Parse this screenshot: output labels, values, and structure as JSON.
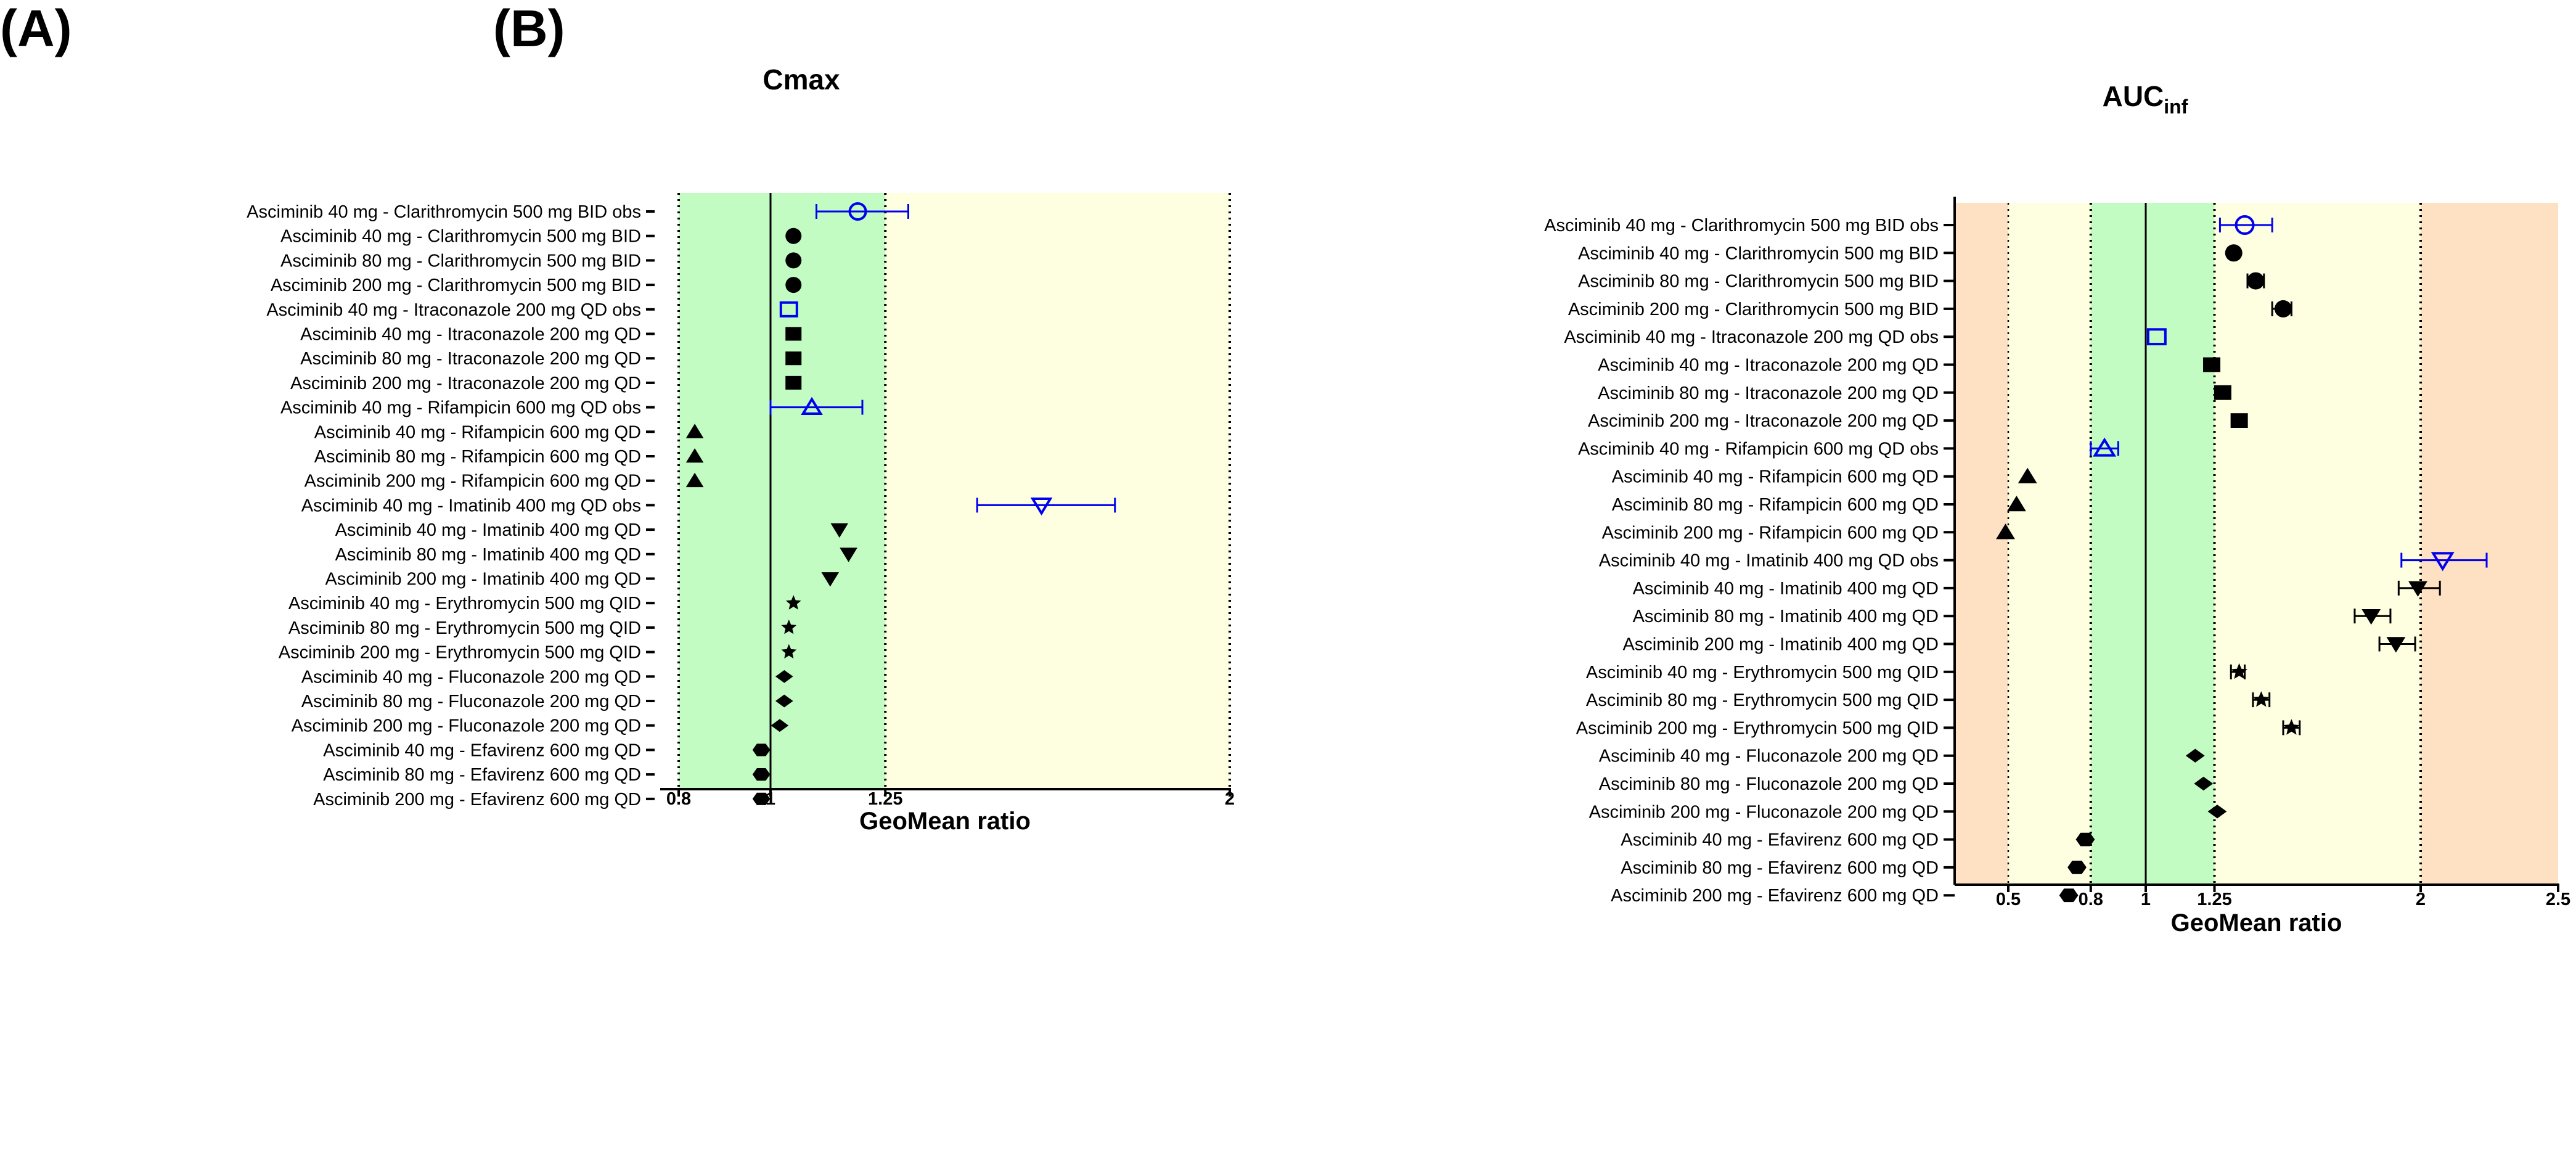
{
  "colors": {
    "green": "#c2fcc2",
    "yellow": "#fefee0",
    "orange": "#fee0c2",
    "obs": "#0000ee",
    "model": "#000000"
  },
  "chart_data": [
    {
      "type": "scatter",
      "panel_label": "(A)",
      "title": "Cmax",
      "title_sub": "",
      "xlabel": "GeoMean ratio",
      "xlim": [
        0.8,
        2
      ],
      "xticks": [
        0.8,
        1,
        1.25,
        2
      ],
      "xtick_labels": [
        "0.8",
        "1",
        "1.25",
        "2"
      ],
      "ref_solid": [
        1
      ],
      "ref_dotted": [
        0.8,
        1.25,
        2
      ],
      "bands": [
        {
          "from": 0.8,
          "to": 1.25,
          "color": "green"
        },
        {
          "from": 1.25,
          "to": 2,
          "color": "yellow"
        }
      ],
      "categories": [
        "Asciminib 40 mg - Clarithromycin 500 mg BID obs",
        "Asciminib 40 mg - Clarithromycin 500 mg BID",
        "Asciminib 80 mg - Clarithromycin 500 mg BID",
        "Asciminib 200 mg - Clarithromycin 500 mg BID",
        "Asciminib 40 mg - Itraconazole 200 mg QD obs",
        "Asciminib 40 mg - Itraconazole 200 mg QD",
        "Asciminib 80 mg - Itraconazole 200 mg QD",
        "Asciminib 200 mg - Itraconazole 200 mg QD",
        "Asciminib 40 mg - Rifampicin 600 mg QD obs",
        "Asciminib 40 mg - Rifampicin 600 mg QD",
        "Asciminib 80 mg - Rifampicin 600 mg QD",
        "Asciminib 200 mg - Rifampicin 600 mg QD",
        "Asciminib 40 mg - Imatinib 400 mg QD obs",
        "Asciminib 40 mg - Imatinib 400 mg QD",
        "Asciminib 80 mg - Imatinib 400 mg QD",
        "Asciminib 200 mg - Imatinib 400 mg QD",
        "Asciminib 40 mg - Erythromycin 500 mg QID",
        "Asciminib 80 mg - Erythromycin 500 mg QID",
        "Asciminib 200 mg - Erythromycin 500 mg QID",
        "Asciminib 40 mg - Fluconazole 200 mg QD",
        "Asciminib 80 mg - Fluconazole 200 mg QD",
        "Asciminib 200 mg - Fluconazole 200 mg QD",
        "Asciminib 40 mg - Efavirenz 600 mg QD",
        "Asciminib 80 mg - Efavirenz 600 mg QD",
        "Asciminib 200 mg - Efavirenz 600 mg QD"
      ],
      "points": [
        {
          "v": 1.19,
          "lo": 1.1,
          "hi": 1.3,
          "marker": "open-circle",
          "obs": true
        },
        {
          "v": 1.05,
          "marker": "circle"
        },
        {
          "v": 1.05,
          "marker": "circle"
        },
        {
          "v": 1.05,
          "marker": "circle"
        },
        {
          "v": 1.04,
          "marker": "open-square",
          "obs": true
        },
        {
          "v": 1.05,
          "marker": "square"
        },
        {
          "v": 1.05,
          "marker": "square"
        },
        {
          "v": 1.05,
          "marker": "square"
        },
        {
          "v": 1.09,
          "lo": 1.0,
          "hi": 1.2,
          "marker": "open-triangle",
          "obs": true
        },
        {
          "v": 0.835,
          "marker": "triangle"
        },
        {
          "v": 0.835,
          "marker": "triangle"
        },
        {
          "v": 0.835,
          "marker": "triangle"
        },
        {
          "v": 1.59,
          "lo": 1.45,
          "hi": 1.75,
          "marker": "open-down-triangle",
          "obs": true
        },
        {
          "v": 1.15,
          "marker": "down-triangle"
        },
        {
          "v": 1.17,
          "marker": "down-triangle"
        },
        {
          "v": 1.13,
          "marker": "down-triangle"
        },
        {
          "v": 1.05,
          "marker": "star"
        },
        {
          "v": 1.04,
          "marker": "star"
        },
        {
          "v": 1.04,
          "marker": "star"
        },
        {
          "v": 1.03,
          "marker": "diamond"
        },
        {
          "v": 1.03,
          "marker": "diamond"
        },
        {
          "v": 1.02,
          "marker": "diamond"
        },
        {
          "v": 0.98,
          "marker": "hexagon"
        },
        {
          "v": 0.98,
          "marker": "hexagon"
        },
        {
          "v": 0.98,
          "marker": "hexagon"
        }
      ]
    },
    {
      "type": "scatter",
      "panel_label": "(B)",
      "title": "AUC",
      "title_sub": "inf",
      "xlabel": "GeoMean ratio",
      "xlim": [
        0.3,
        2.5
      ],
      "xticks": [
        0.5,
        0.8,
        1,
        1.25,
        2,
        2.5
      ],
      "xtick_labels": [
        "0.5",
        "0.8",
        "1",
        "1.25",
        "2",
        "2.5"
      ],
      "ref_solid": [
        1
      ],
      "ref_dotted": [
        0.5,
        0.8,
        1.25,
        2
      ],
      "bands": [
        {
          "from": 0.3,
          "to": 0.5,
          "color": "orange"
        },
        {
          "from": 0.5,
          "to": 0.8,
          "color": "yellow"
        },
        {
          "from": 0.8,
          "to": 1.25,
          "color": "green"
        },
        {
          "from": 1.25,
          "to": 2,
          "color": "yellow"
        },
        {
          "from": 2,
          "to": 2.5,
          "color": "orange"
        }
      ],
      "points": [
        {
          "v": 1.36,
          "lo": 1.27,
          "hi": 1.46,
          "marker": "open-circle",
          "obs": true
        },
        {
          "v": 1.32,
          "marker": "circle"
        },
        {
          "v": 1.4,
          "lo": 1.37,
          "hi": 1.43,
          "marker": "circle"
        },
        {
          "v": 1.5,
          "lo": 1.46,
          "hi": 1.53,
          "marker": "circle"
        },
        {
          "v": 1.04,
          "marker": "open-square",
          "obs": true
        },
        {
          "v": 1.24,
          "marker": "square"
        },
        {
          "v": 1.28,
          "marker": "square"
        },
        {
          "v": 1.34,
          "marker": "square"
        },
        {
          "v": 0.85,
          "lo": 0.8,
          "hi": 0.9,
          "marker": "open-triangle",
          "obs": true
        },
        {
          "v": 0.57,
          "marker": "triangle"
        },
        {
          "v": 0.53,
          "marker": "triangle"
        },
        {
          "v": 0.49,
          "marker": "triangle"
        },
        {
          "v": 2.08,
          "lo": 1.93,
          "hi": 2.24,
          "marker": "open-down-triangle",
          "obs": true
        },
        {
          "v": 1.99,
          "lo": 1.92,
          "hi": 2.07,
          "marker": "down-triangle"
        },
        {
          "v": 1.82,
          "lo": 1.76,
          "hi": 1.89,
          "marker": "down-triangle"
        },
        {
          "v": 1.91,
          "lo": 1.85,
          "hi": 1.98,
          "marker": "down-triangle"
        },
        {
          "v": 1.34,
          "lo": 1.31,
          "hi": 1.36,
          "marker": "star"
        },
        {
          "v": 1.42,
          "lo": 1.39,
          "hi": 1.45,
          "marker": "star"
        },
        {
          "v": 1.53,
          "lo": 1.5,
          "hi": 1.56,
          "marker": "star"
        },
        {
          "v": 1.18,
          "marker": "diamond"
        },
        {
          "v": 1.21,
          "marker": "diamond"
        },
        {
          "v": 1.26,
          "marker": "diamond"
        },
        {
          "v": 0.78,
          "marker": "hexagon"
        },
        {
          "v": 0.75,
          "marker": "hexagon"
        },
        {
          "v": 0.72,
          "marker": "hexagon"
        }
      ]
    }
  ]
}
